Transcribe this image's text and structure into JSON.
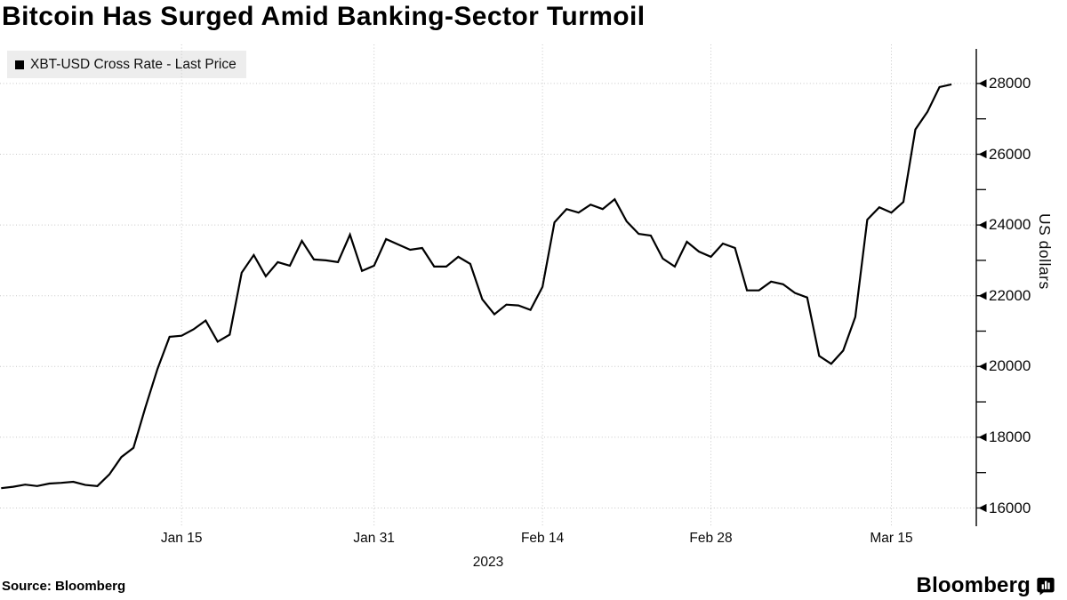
{
  "title": "Bitcoin Has Surged Amid Banking-Sector Turmoil",
  "legend": {
    "label": "XBT-USD Cross Rate - Last Price",
    "swatch_color": "#000000"
  },
  "source": "Source: Bloomberg",
  "branding": "Bloomberg",
  "colors": {
    "line": "#000000",
    "grid": "#c7c7c7",
    "axis": "#000000",
    "legend_bg": "#ededed"
  },
  "chart_data": {
    "type": "line",
    "title": "Bitcoin Has Surged Amid Banking-Sector Turmoil",
    "series_name": "XBT-USD Cross Rate - Last Price",
    "ylabel": "US dollars",
    "x_axis_year_label": "2023",
    "x_tick_labels": [
      "Jan 15",
      "Jan 31",
      "Feb 14",
      "Feb 28",
      "Mar 15"
    ],
    "x_tick_indices": [
      15,
      31,
      45,
      59,
      74
    ],
    "y_tick_values": [
      16000,
      18000,
      20000,
      22000,
      24000,
      26000,
      28000
    ],
    "y_minor_tick_values": [
      17000,
      19000,
      21000,
      23000,
      25000,
      27000
    ],
    "ylim": [
      15780,
      28600
    ],
    "grid": "dotted",
    "legend_position": "top-left",
    "frequency": "daily",
    "values": [
      16560,
      16600,
      16660,
      16620,
      16690,
      16710,
      16740,
      16650,
      16620,
      16950,
      17440,
      17700,
      18850,
      19930,
      20840,
      20870,
      21050,
      21300,
      20700,
      20900,
      22650,
      23150,
      22550,
      22950,
      22850,
      23550,
      23025,
      23000,
      22950,
      23725,
      22700,
      22850,
      23600,
      23450,
      23300,
      23350,
      22825,
      22825,
      23100,
      22900,
      21900,
      21475,
      21750,
      21725,
      21600,
      22250,
      24075,
      24450,
      24350,
      24575,
      24450,
      24725,
      24100,
      23750,
      23700,
      23050,
      22825,
      23525,
      23250,
      23100,
      23475,
      23350,
      22150,
      22150,
      22400,
      22325,
      22075,
      21950,
      20300,
      20075,
      20450,
      21400,
      24150,
      24500,
      24350,
      24650,
      26700,
      27200,
      27900,
      27975
    ]
  }
}
